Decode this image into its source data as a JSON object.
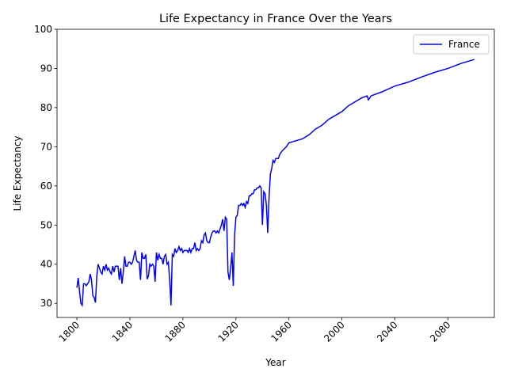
{
  "chart_data": {
    "type": "line",
    "title": "Life Expectancy in France Over the Years",
    "x_label": "Year",
    "y_label": "Life Expectancy",
    "x": [
      1800,
      1801,
      1802,
      1803,
      1804,
      1805,
      1806,
      1807,
      1808,
      1809,
      1810,
      1811,
      1812,
      1813,
      1814,
      1815,
      1816,
      1817,
      1818,
      1819,
      1820,
      1821,
      1822,
      1823,
      1824,
      1825,
      1826,
      1827,
      1828,
      1829,
      1830,
      1831,
      1832,
      1833,
      1834,
      1835,
      1836,
      1837,
      1838,
      1839,
      1840,
      1841,
      1842,
      1843,
      1844,
      1845,
      1846,
      1847,
      1848,
      1849,
      1850,
      1851,
      1852,
      1853,
      1854,
      1855,
      1856,
      1857,
      1858,
      1859,
      1860,
      1861,
      1862,
      1863,
      1864,
      1865,
      1866,
      1867,
      1868,
      1869,
      1870,
      1871,
      1872,
      1873,
      1874,
      1875,
      1876,
      1877,
      1878,
      1879,
      1880,
      1881,
      1882,
      1883,
      1884,
      1885,
      1886,
      1887,
      1888,
      1889,
      1890,
      1891,
      1892,
      1893,
      1894,
      1895,
      1896,
      1897,
      1898,
      1899,
      1900,
      1901,
      1902,
      1903,
      1904,
      1905,
      1906,
      1907,
      1908,
      1909,
      1910,
      1911,
      1912,
      1913,
      1914,
      1915,
      1916,
      1917,
      1918,
      1919,
      1920,
      1921,
      1922,
      1923,
      1924,
      1925,
      1926,
      1927,
      1928,
      1929,
      1930,
      1931,
      1932,
      1933,
      1934,
      1935,
      1936,
      1937,
      1938,
      1939,
      1940,
      1941,
      1942,
      1943,
      1944,
      1945,
      1946,
      1947,
      1948,
      1949,
      1950,
      1952,
      1953,
      1955,
      1958,
      1960,
      1965,
      1970,
      1975,
      1980,
      1985,
      1990,
      1995,
      2000,
      2005,
      2010,
      2015,
      2019,
      2020,
      2021,
      2022,
      2030,
      2040,
      2050,
      2060,
      2070,
      2080,
      2090,
      2100
    ],
    "series": [
      {
        "name": "France",
        "color": "#0000ff",
        "values": [
          34,
          36.5,
          33,
          30,
          29.5,
          35,
          35,
          34.5,
          35,
          35.5,
          37.5,
          36,
          32,
          31.5,
          30.2,
          37,
          40,
          39,
          38,
          37.5,
          39.5,
          38.5,
          40,
          38.5,
          39,
          38,
          37.5,
          39.5,
          38,
          39.5,
          39.5,
          39.5,
          36,
          39,
          35,
          38,
          42,
          39.5,
          39.5,
          40.5,
          40.5,
          40,
          40.5,
          42,
          43.5,
          41,
          40.5,
          40.5,
          36,
          43,
          41.5,
          41.5,
          42.5,
          36.2,
          37,
          40,
          39.5,
          40,
          39.5,
          35.5,
          43,
          41,
          42.5,
          41.5,
          41.5,
          40,
          42,
          42.5,
          40,
          40.5,
          36,
          29.5,
          42.5,
          42,
          44,
          43,
          43.5,
          44.5,
          43.5,
          44,
          43,
          43.5,
          43.5,
          43.5,
          43,
          44,
          43,
          44,
          44,
          45.5,
          43.5,
          44,
          43.5,
          44,
          46,
          45.5,
          47.5,
          48,
          46,
          45.5,
          45.5,
          47,
          48,
          48.5,
          48.5,
          48,
          48.5,
          48,
          49,
          50,
          51.5,
          48.5,
          52,
          51.5,
          38,
          36,
          39,
          43,
          34.5,
          47.5,
          52,
          52.5,
          55,
          55,
          55.5,
          55,
          55.5,
          54.5,
          56,
          55.5,
          57.5,
          57.5,
          58,
          58,
          59,
          59,
          59.5,
          59.5,
          60,
          59.5,
          50,
          58.5,
          58,
          55,
          48,
          57,
          63,
          64.5,
          66.5,
          66,
          67,
          67,
          68,
          69,
          70,
          71,
          71.5,
          72,
          73,
          74.5,
          75.5,
          77,
          78,
          79,
          80.5,
          81.5,
          82.5,
          83,
          82,
          82.5,
          83,
          84,
          85.5,
          86.5,
          87.8,
          89,
          90,
          91.3,
          92.3
        ]
      }
    ],
    "xlim": [
      1785,
      2115
    ],
    "ylim": [
      26.4,
      100
    ],
    "xticks": [
      1800,
      1840,
      1880,
      1920,
      1960,
      2000,
      2040,
      2080
    ],
    "yticks": [
      30,
      40,
      50,
      60,
      70,
      80,
      90,
      100
    ],
    "legend": "upper right"
  }
}
